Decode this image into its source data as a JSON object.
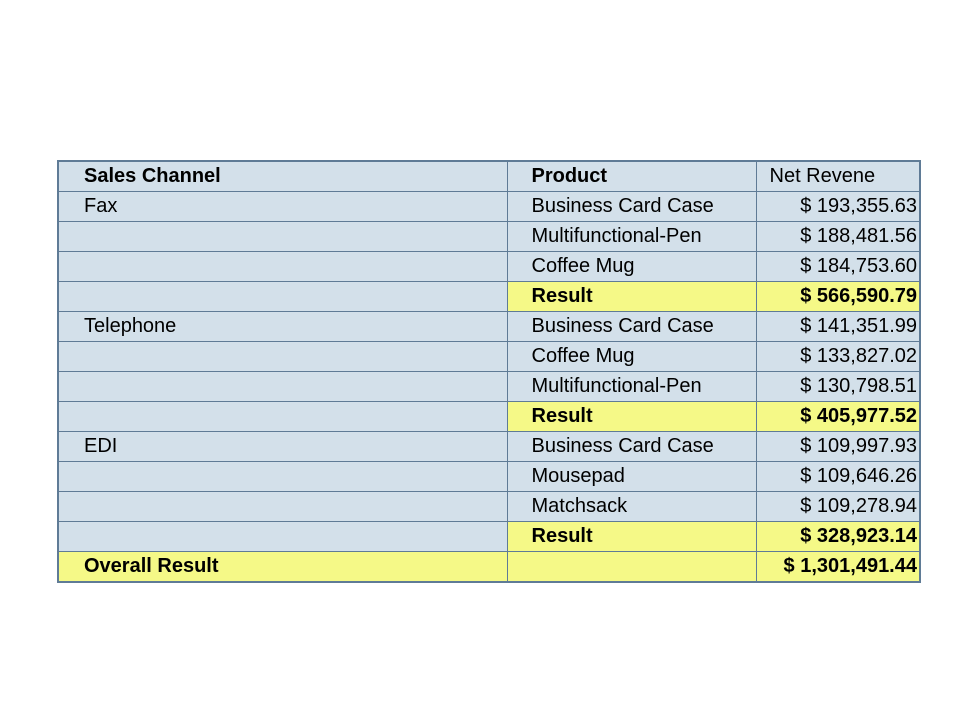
{
  "table": {
    "headers": {
      "channel": "Sales Channel",
      "product": "Product",
      "revenue": "Net Revene"
    },
    "rows": [
      {
        "channel": "Fax",
        "product": "Business Card Case",
        "value": "$ 193,355.63"
      },
      {
        "channel": "",
        "product": "Multifunctional-Pen",
        "value": "$ 188,481.56"
      },
      {
        "channel": "",
        "product": "Coffee Mug",
        "value": "$ 184,753.60"
      },
      {
        "channel": "",
        "product": "Result",
        "value": "$ 566,590.79",
        "subtotal": true
      },
      {
        "channel": "Telephone",
        "product": "Business Card Case",
        "value": "$ 141,351.99"
      },
      {
        "channel": "",
        "product": "Coffee Mug",
        "value": "$ 133,827.02"
      },
      {
        "channel": "",
        "product": "Multifunctional-Pen",
        "value": "$ 130,798.51"
      },
      {
        "channel": "",
        "product": "Result",
        "value": "$ 405,977.52",
        "subtotal": true
      },
      {
        "channel": "EDI",
        "product": "Business Card Case",
        "value": "$ 109,997.93"
      },
      {
        "channel": "",
        "product": "Mousepad",
        "value": "$ 109,646.26"
      },
      {
        "channel": "",
        "product": "Matchsack",
        "value": "$ 109,278.94"
      },
      {
        "channel": "",
        "product": "Result",
        "value": "$ 328,923.14",
        "subtotal": true
      }
    ],
    "overall": {
      "label": "Overall Result",
      "product": "",
      "value": "$ 1,301,491.44"
    }
  },
  "colors": {
    "cell_background": "#d3e0ea",
    "highlight": "#f5f987",
    "border": "#5f7b96"
  }
}
